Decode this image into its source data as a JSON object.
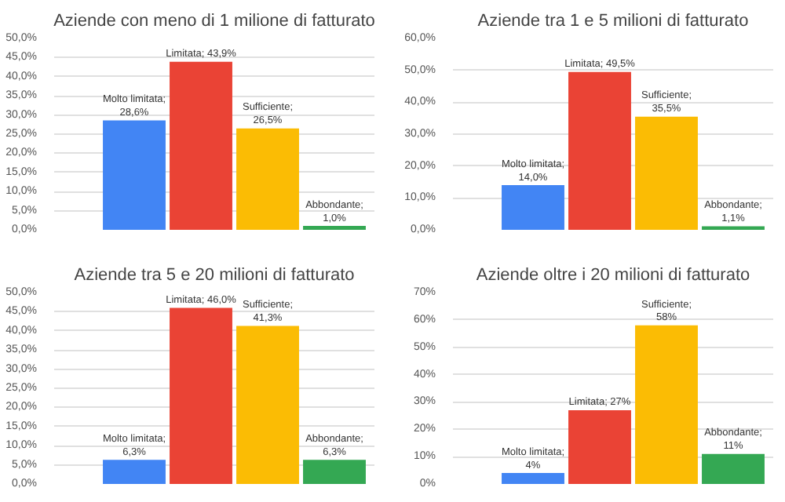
{
  "chart_data": [
    {
      "type": "bar",
      "title": "Aziende con meno di 1 milione di fatturato",
      "categories": [
        null,
        null,
        null,
        null
      ],
      "colors": [
        "#4285f4",
        "#ea4335",
        "#fbbc04",
        "#34a853"
      ],
      "values": [
        28.6,
        43.9,
        26.5,
        1.0
      ],
      "value_labels": [
        "Molto limitata; 28,6%",
        "Limitata; 43,9%",
        "Sufficiente; 26,5%",
        "Abbondante; 1,0%"
      ],
      "ylim": [
        0,
        50
      ],
      "yticks": [
        {
          "value": 0,
          "label": "0,0%"
        },
        {
          "value": 5,
          "label": "5,0%"
        },
        {
          "value": 10,
          "label": "10,0%"
        },
        {
          "value": 15,
          "label": "15,0%"
        },
        {
          "value": 20,
          "label": "20,0%"
        },
        {
          "value": 25,
          "label": "25,0%"
        },
        {
          "value": 30,
          "label": "30,0%"
        },
        {
          "value": 35,
          "label": "35,0%"
        },
        {
          "value": 40,
          "label": "40,0%"
        },
        {
          "value": 45,
          "label": "45,0%"
        },
        {
          "value": 50,
          "label": "50,0%"
        }
      ],
      "grid": "y",
      "tick_labels": "y"
    },
    {
      "type": "bar",
      "title": "Aziende tra 1 e 5 milioni di fatturato",
      "categories": [
        null,
        null,
        null,
        null
      ],
      "colors": [
        "#4285f4",
        "#ea4335",
        "#fbbc04",
        "#34a853"
      ],
      "values": [
        14.0,
        49.5,
        35.5,
        1.1
      ],
      "value_labels": [
        "Molto limitata; 14,0%",
        "Limitata; 49,5%",
        "Sufficiente; 35,5%",
        "Abbondante; 1,1%"
      ],
      "ylim": [
        0,
        60
      ],
      "yticks": [
        {
          "value": 0,
          "label": "0,0%"
        },
        {
          "value": 10,
          "label": "10,0%"
        },
        {
          "value": 20,
          "label": "20,0%"
        },
        {
          "value": 30,
          "label": "30,0%"
        },
        {
          "value": 40,
          "label": "40,0%"
        },
        {
          "value": 50,
          "label": "50,0%"
        },
        {
          "value": 60,
          "label": "60,0%"
        }
      ],
      "grid": "y",
      "tick_labels": "y"
    },
    {
      "type": "bar",
      "title": "Aziende tra 5 e 20 milioni di fatturato",
      "categories": [
        null,
        null,
        null,
        null
      ],
      "colors": [
        "#4285f4",
        "#ea4335",
        "#fbbc04",
        "#34a853"
      ],
      "values": [
        6.3,
        46.0,
        41.3,
        6.3
      ],
      "value_labels": [
        "Molto limitata; 6,3%",
        "Limitata; 46,0%",
        "Sufficiente; 41,3%",
        "Abbondante; 6,3%"
      ],
      "ylim": [
        0,
        50
      ],
      "yticks": [
        {
          "value": 0,
          "label": "0,0%"
        },
        {
          "value": 5,
          "label": "5,0%"
        },
        {
          "value": 10,
          "label": "10,0%"
        },
        {
          "value": 15,
          "label": "15,0%"
        },
        {
          "value": 20,
          "label": "20,0%"
        },
        {
          "value": 25,
          "label": "25,0%"
        },
        {
          "value": 30,
          "label": "30,0%"
        },
        {
          "value": 35,
          "label": "35,0%"
        },
        {
          "value": 40,
          "label": "40,0%"
        },
        {
          "value": 45,
          "label": "45,0%"
        },
        {
          "value": 50,
          "label": "50,0%"
        }
      ],
      "grid": "y",
      "tick_labels": "y"
    },
    {
      "type": "bar",
      "title": "Aziende oltre i 20 milioni di fatturato",
      "categories": [
        null,
        null,
        null,
        null
      ],
      "colors": [
        "#4285f4",
        "#ea4335",
        "#fbbc04",
        "#34a853"
      ],
      "values": [
        4,
        27,
        58,
        11
      ],
      "value_labels": [
        "Molto limitata; 4%",
        "Limitata; 27%",
        "Sufficiente; 58%",
        "Abbondante; 11%"
      ],
      "ylim": [
        0,
        70
      ],
      "yticks": [
        {
          "value": 0,
          "label": "0%"
        },
        {
          "value": 10,
          "label": "10%"
        },
        {
          "value": 20,
          "label": "20%"
        },
        {
          "value": 30,
          "label": "30%"
        },
        {
          "value": 40,
          "label": "40%"
        },
        {
          "value": 50,
          "label": "50%"
        },
        {
          "value": 60,
          "label": "60%"
        },
        {
          "value": 70,
          "label": "70%"
        }
      ],
      "grid": "y",
      "tick_labels": "y"
    }
  ]
}
